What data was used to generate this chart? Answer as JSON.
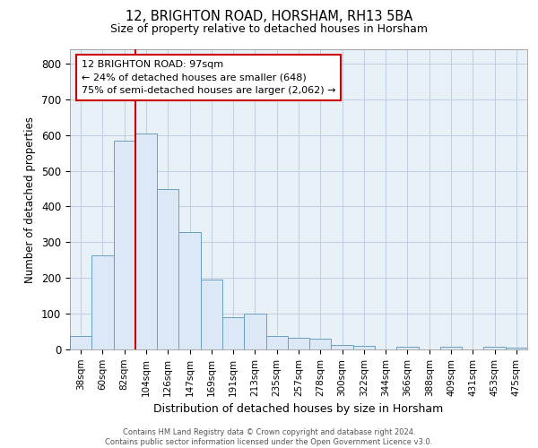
{
  "title1": "12, BRIGHTON ROAD, HORSHAM, RH13 5BA",
  "title2": "Size of property relative to detached houses in Horsham",
  "xlabel": "Distribution of detached houses by size in Horsham",
  "ylabel": "Number of detached properties",
  "categories": [
    "38sqm",
    "60sqm",
    "82sqm",
    "104sqm",
    "126sqm",
    "147sqm",
    "169sqm",
    "191sqm",
    "213sqm",
    "235sqm",
    "257sqm",
    "278sqm",
    "300sqm",
    "322sqm",
    "344sqm",
    "366sqm",
    "388sqm",
    "409sqm",
    "431sqm",
    "453sqm",
    "475sqm"
  ],
  "values": [
    37,
    264,
    585,
    605,
    450,
    328,
    195,
    90,
    100,
    37,
    32,
    30,
    13,
    10,
    0,
    7,
    0,
    7,
    0,
    7,
    5
  ],
  "bar_color": "#dce8f5",
  "bar_edge_color": "#6a9fc0",
  "red_line_color": "#cc0000",
  "grid_color": "#c0cfe0",
  "bg_color": "#e8f0f8",
  "ylim": [
    0,
    840
  ],
  "yticks": [
    0,
    100,
    200,
    300,
    400,
    500,
    600,
    700,
    800
  ],
  "ann_line1": "12 BRIGHTON ROAD: 97sqm",
  "ann_line2": "← 24% of detached houses are smaller (648)",
  "ann_line3": "75% of semi-detached houses are larger (2,062) →",
  "footer1": "Contains HM Land Registry data © Crown copyright and database right 2024.",
  "footer2": "Contains public sector information licensed under the Open Government Licence v3.0.",
  "red_line_index": 3
}
